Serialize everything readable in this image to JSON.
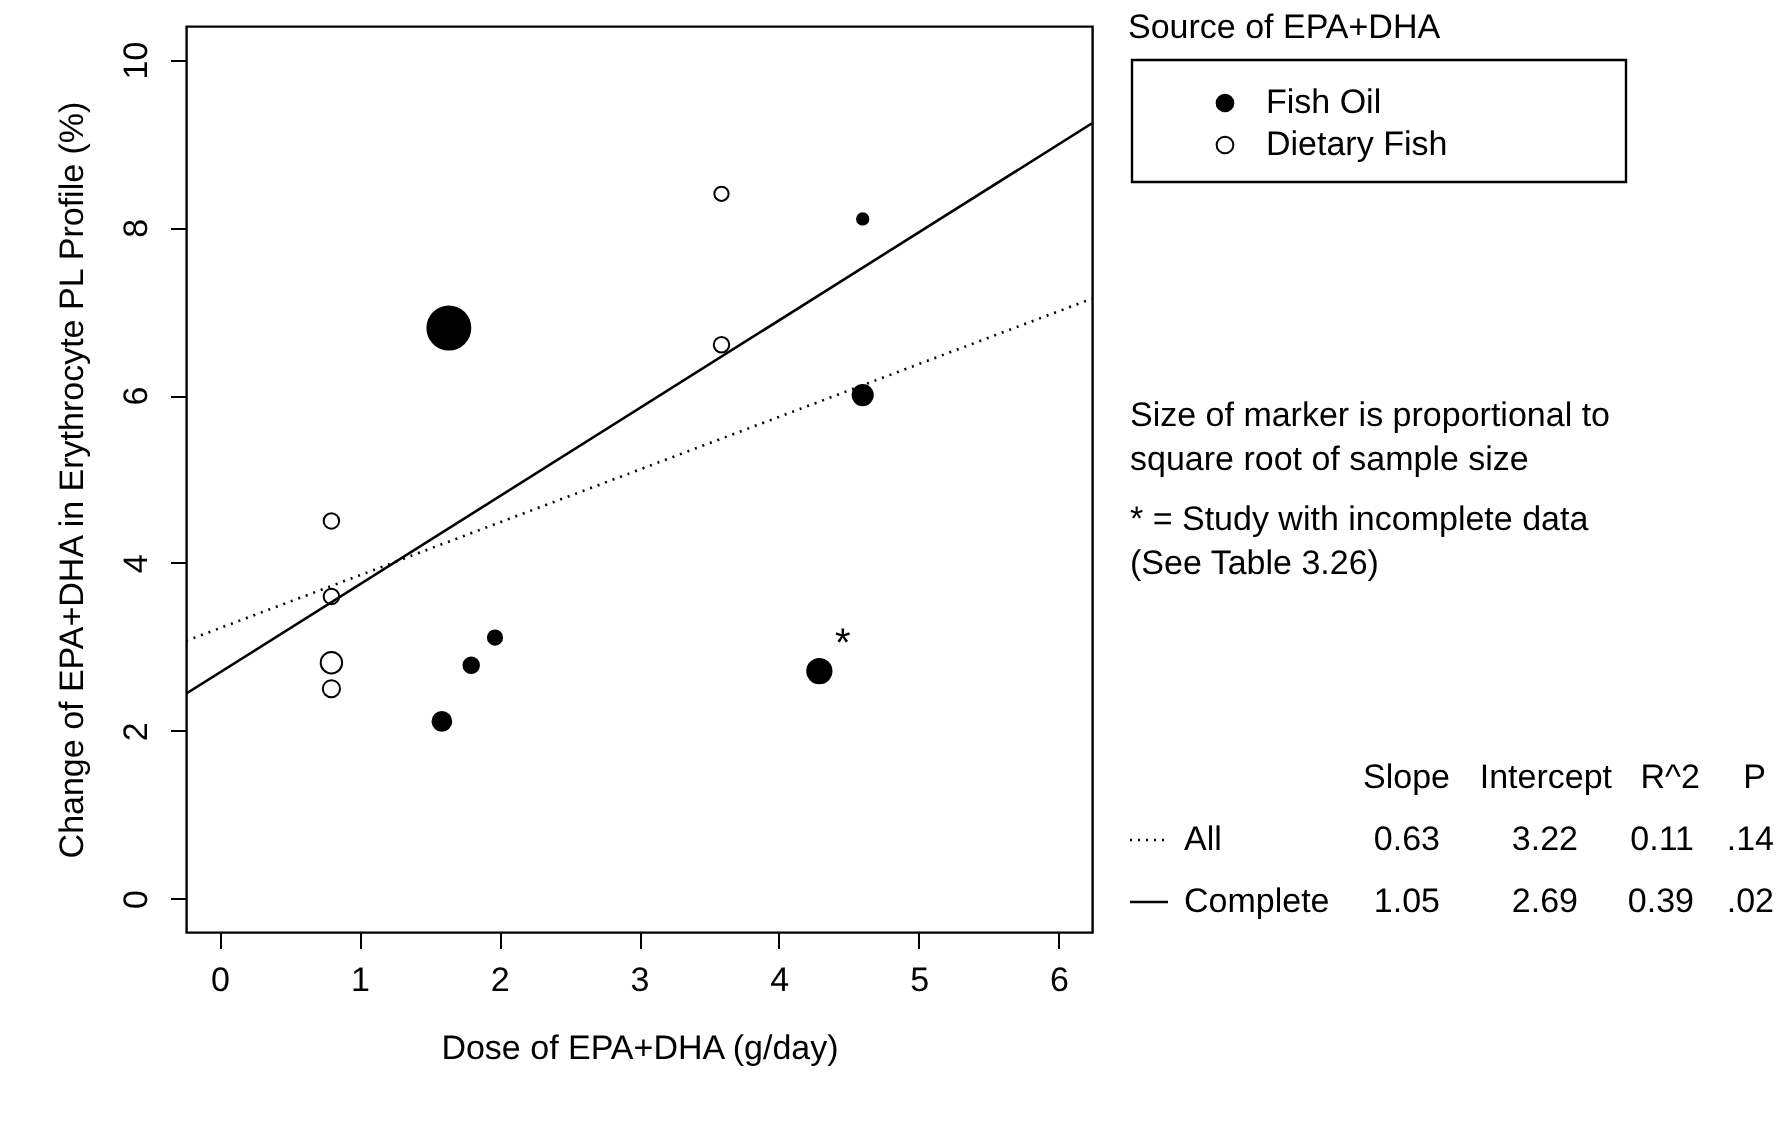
{
  "chart_data": {
    "type": "bubble",
    "xlabel": "Dose of EPA+DHA (g/day)",
    "ylabel": "Change of EPA+DHA in Erythrocyte PL Profile (%)",
    "legend_title": "Source of EPA+DHA",
    "legend": "right",
    "marker": "circle",
    "grid": false,
    "xlim": [
      -0.24,
      6.24
    ],
    "ylim": [
      -0.4,
      10.4
    ],
    "xticks": [
      0,
      1,
      2,
      3,
      4,
      5,
      6
    ],
    "yticks": [
      0,
      2,
      4,
      6,
      8,
      10
    ],
    "series": [
      {
        "name": "Fish Oil",
        "type": "bubble",
        "color": "#000000",
        "x": [
          1.64,
          4.6,
          4.6,
          1.59,
          1.8,
          1.97,
          4.29
        ],
        "values": [
          6.8,
          8.1,
          6.0,
          2.11,
          2.78,
          3.11,
          2.71
        ],
        "sizes": [
          1,
          0.07,
          0.22,
          0.19,
          0.13,
          0.11,
          0.32
        ]
      },
      {
        "name": "Dietary Fish",
        "type": "bubble",
        "color": "#ffffff",
        "x": [
          3.59,
          3.59,
          0.8,
          0.8,
          0.8,
          0.8
        ],
        "values": [
          8.4,
          6.6,
          4.5,
          3.6,
          2.81,
          2.5
        ],
        "sizes": [
          0.11,
          0.13,
          0.13,
          0.13,
          0.25,
          0.16
        ]
      },
      {
        "name": "All",
        "type": "line",
        "marker": "none",
        "line_style": "dotted",
        "color": "#000000",
        "x": [
          -0.24,
          6.24
        ],
        "values": [
          3.07,
          7.15
        ]
      },
      {
        "name": "Complete",
        "type": "line",
        "marker": "none",
        "line_style": "solid",
        "color": "#000000",
        "x": [
          -0.24,
          6.24
        ],
        "values": [
          2.44,
          9.24
        ]
      }
    ],
    "annotations": [
      "Size of marker is proportional to\nsquare root of sample size",
      "* = Study with incomplete data\n(See Table 3.26)",
      {
        "text": "*",
        "x": 4.3,
        "y": 2.7
      },
      "Slope",
      "Intercept",
      "R^2",
      "P",
      "0.63",
      "3.22",
      "0.11",
      ".14",
      "1.05",
      "2.69",
      "0.39",
      ".02"
    ]
  }
}
